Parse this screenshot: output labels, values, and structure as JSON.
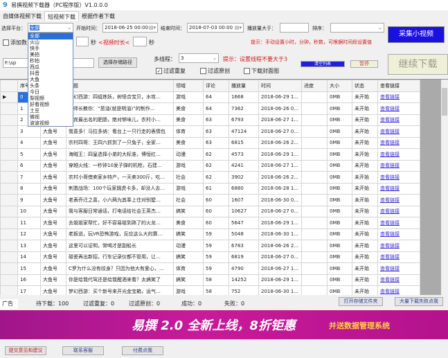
{
  "window": {
    "title": "易撰视频下载器（PC程序版）V1.0.0.0"
  },
  "tabs": [
    "自媒体视频下载",
    "短视频下载",
    "根据作者下载"
  ],
  "filters": {
    "platform_label": "选择平台：",
    "platform_value": "全部",
    "start_label": "开始时间：",
    "start_value": "2018-06-25 00:00",
    "end_label": "结束时间：",
    "end_value": "2018-07-03 00:00",
    "plays_label": "播放量大于：",
    "plays_value": "",
    "sort_label": "排序：",
    "sort_value": "",
    "add_label": "添加数",
    "duration_unit1": "秒",
    "duration_label": "<视频时长<",
    "duration_unit2": "秒",
    "hint_time": "提示：手动设置小时，分钟，秒数，可根据时间段设置值",
    "collect_button": "采集小视频"
  },
  "platform_options": [
    "全部",
    "火山",
    "快手",
    "美拍",
    "秒拍",
    "西瓜",
    "抖音",
    "大鱼",
    "头条",
    "今日",
    "梨视频",
    "好看视频",
    "土豆",
    "微视",
    "波波视频"
  ],
  "storage": {
    "path_value": "F:\\sp",
    "choose_button": "选择存储路径",
    "threads_label": "多线程：",
    "threads_value": "3",
    "thread_hint": "提示：设置线程不要大于3",
    "filter_dup": "过滤重复",
    "filter_dup_checked": true,
    "filter_orig": "过滤原创",
    "filter_orig_checked": false,
    "download_cover": "下载封面图",
    "download_cover_checked": false,
    "clear_button": "清空列表",
    "pause_button": "暂停",
    "continue_button": "继续下载"
  },
  "table": {
    "columns": [
      "序号",
      "作者",
      "标题",
      "领域",
      "评论",
      "播放量",
      "时间",
      "进度",
      "大小",
      "状态",
      "查看链接"
    ],
    "rows": [
      [
        "0",
        "大鱼号",
        "梦幻西游：四组炼妖，树怪合宝贝，水攻…",
        "游戏",
        "64",
        "1668",
        "2018-06-29 1...",
        "",
        "0MB",
        "未开始",
        "查看链接"
      ],
      [
        "1",
        "大鱼号",
        "厨师长教你：“葱油(就是明油)”的制作…",
        "美食",
        "64",
        "7362",
        "2018-06-26 0...",
        "",
        "0MB",
        "未开始",
        "查看链接"
      ],
      [
        "2",
        "大鱼号",
        "宜宾最出名的肥肠，绝对够味儿，农村小…",
        "美食",
        "63",
        "6793",
        "2018-06-27 1...",
        "",
        "0MB",
        "未开始",
        "查看链接"
      ],
      [
        "3",
        "大鱼号",
        "我喜多！马拉多纳：看台上一只行走的表情包",
        "体育",
        "63",
        "47124",
        "2018-06-27 0...",
        "",
        "0MB",
        "未开始",
        "查看链接"
      ],
      [
        "4",
        "大鱼号",
        "农村四哥：王四六抓到了一只兔子，全家…",
        "美食",
        "63",
        "6815",
        "2018-06-26 2...",
        "",
        "0MB",
        "未开始",
        "查看链接"
      ],
      [
        "5",
        "大鱼号",
        "海贼王：四皇选择小弟的大标准，博恒红…",
        "动漫",
        "62",
        "4573",
        "2018-06-29 1...",
        "",
        "0MB",
        "未开始",
        "查看链接"
      ],
      [
        "6",
        "大鱼号",
        "穿越火线：一秒钟10发子弹的机枪，石建…",
        "游戏",
        "62",
        "4241",
        "2018-06-27 1...",
        "",
        "0MB",
        "未开始",
        "查看链接"
      ],
      [
        "7",
        "大鱼号",
        "农村小哥借卖家乡特产，一天卖300斤，吃…",
        "社会",
        "62",
        "3902",
        "2018-06-26 2...",
        "",
        "0MB",
        "未开始",
        "查看链接"
      ],
      [
        "8",
        "大鱼号",
        "刺激战场：100个玩家跳虎卡多，却没人去…",
        "游戏",
        "61",
        "6880",
        "2018-06-28 1...",
        "",
        "0MB",
        "未开始",
        "查看链接"
      ],
      [
        "9",
        "大鱼号",
        "老表乔迁之喜，小六两为其奉上住对别墅…",
        "社会",
        "60",
        "1607",
        "2018-06-30 0...",
        "",
        "0MB",
        "未开始",
        "查看链接"
      ],
      [
        "10",
        "大鱼号",
        "我与客服日常通话，打电话给社会王英杰…",
        "搞笑",
        "60",
        "10627",
        "2018-06-27 0...",
        "",
        "0MB",
        "未开始",
        "查看链接"
      ],
      [
        "11",
        "大鱼号",
        "去姐姐家帮忙，好不容易碰到熟了的火龙…",
        "美食",
        "60",
        "5647",
        "2018-06-29 1...",
        "",
        "0MB",
        "未开始",
        "查看链接"
      ],
      [
        "12",
        "大鱼号",
        "老板说，玩VR恐怖游戏，反应这么大的算…",
        "搞笑",
        "59",
        "5048",
        "2018-06-30 1...",
        "",
        "0MB",
        "未开始",
        "查看链接"
      ],
      [
        "13",
        "大鱼号",
        "这里可以证明，常喝才是副船长",
        "动漫",
        "59",
        "6783",
        "2018-06-26 2...",
        "",
        "0MB",
        "未开始",
        "查看链接"
      ],
      [
        "14",
        "大鱼号",
        "碰瓷再出新招，行车记录仪都不管用，让…",
        "搞笑",
        "59",
        "6819",
        "2018-06-27 0...",
        "",
        "0MB",
        "未开始",
        "查看链接"
      ],
      [
        "15",
        "大鱼号",
        "C罗为什么没有纹身？只因为他大有爱心，…",
        "体育",
        "59",
        "4790",
        "2018-06-27 1...",
        "",
        "0MB",
        "未开始",
        "查看链接"
      ],
      [
        "16",
        "大鱼号",
        "你是给我代驾还是给我醒酒来看？太搞笑了",
        "搞笑",
        "58",
        "14252",
        "2018-06-29 1...",
        "",
        "0MB",
        "未开始",
        "查看链接"
      ],
      [
        "17",
        "大鱼号",
        "梦幻西游：买个新号来开光金宝箱，运气…",
        "游戏",
        "58",
        "752",
        "2018-06-30 1...",
        "",
        "0MB",
        "未开始",
        "查看链接"
      ]
    ]
  },
  "status": {
    "ad_tab": "广告",
    "pending": "待下载：100",
    "dup": "过滤重复：0",
    "orig": "过滤原创：0",
    "success": "成功：0",
    "fail": "失败：0",
    "open_folder": "打开存储文件夹",
    "bulk_fail": "大量下载失败点我"
  },
  "banner": {
    "main": "易撰 2.0 全新上线，8折钜惠",
    "sub": "并送数据管理系统"
  },
  "footer": {
    "feedback": "提交意见和建议",
    "contact": "联系客服",
    "paid": "付费点我"
  },
  "colors": {
    "collect": "#1a10e0",
    "clear": "#2020d8",
    "banner": "#b0168e",
    "link": "#3c2fd6",
    "hint": "#d01818"
  }
}
